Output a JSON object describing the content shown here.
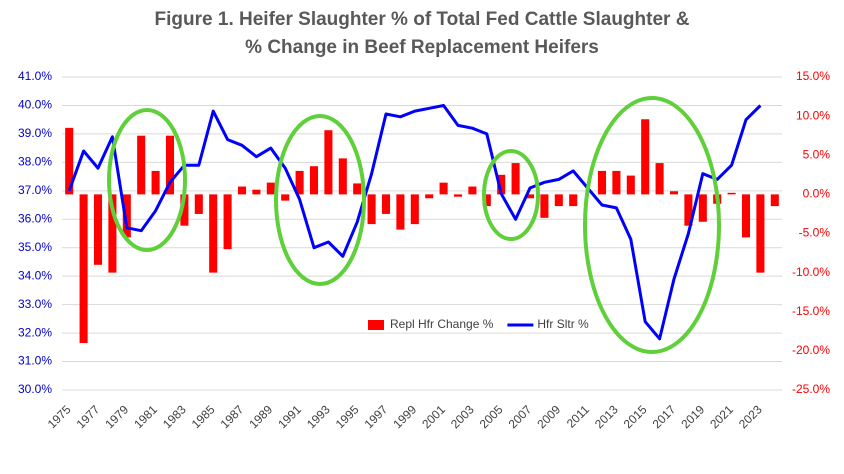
{
  "chart_data": {
    "type": "combo",
    "title": [
      "Figure 1.  Heifer Slaughter % of Total Fed Cattle Slaughter &",
      "% Change in Beef Replacement Heifers"
    ],
    "categories": [
      "1975",
      null,
      "1977",
      null,
      "1979",
      null,
      "1981",
      null,
      "1983",
      null,
      "1985",
      null,
      "1987",
      null,
      "1989",
      null,
      "1991",
      null,
      "1993",
      null,
      "1995",
      null,
      "1997",
      null,
      "1999",
      null,
      "2001",
      null,
      "2003",
      null,
      "2005",
      null,
      "2007",
      null,
      "2009",
      null,
      "2011",
      null,
      "2013",
      null,
      "2015",
      null,
      "2017",
      null,
      "2019",
      null,
      "2021",
      null,
      "2023",
      null
    ],
    "series": [
      {
        "name": "Repl Hfr Change %",
        "type": "bar",
        "axis": "y2",
        "color": "#ff0000",
        "values": [
          8.5,
          -19,
          -9,
          -10,
          -5.5,
          7.5,
          3.0,
          7.5,
          -4,
          -2.5,
          -10,
          -7,
          1.0,
          0.6,
          1.5,
          -0.8,
          3.0,
          3.6,
          8.2,
          4.6,
          1.4,
          -3.8,
          -2.5,
          -4.5,
          -3.8,
          -0.5,
          1.5,
          -0.3,
          1.0,
          -1.5,
          2.5,
          4.0,
          -0.5,
          -3.0,
          -1.5,
          -1.5,
          0,
          3.0,
          3.0,
          2.4,
          9.6,
          4.0,
          0.4,
          -4.0,
          -3.5,
          -1.2,
          0.2,
          -5.5,
          -10,
          -1.5
        ]
      },
      {
        "name": "Hfr Sltr %",
        "type": "line",
        "color": "#0000ff",
        "values": [
          37.0,
          38.4,
          37.8,
          38.9,
          35.7,
          35.6,
          36.3,
          37.3,
          37.9,
          37.9,
          39.8,
          38.8,
          38.6,
          38.2,
          38.5,
          37.8,
          36.7,
          35.0,
          35.2,
          34.7,
          35.9,
          37.6,
          39.7,
          39.6,
          39.8,
          39.9,
          40.0,
          39.3,
          39.2,
          39.0,
          36.9,
          36.0,
          37.1,
          37.3,
          37.4,
          37.7,
          37.1,
          36.5,
          36.4,
          35.3,
          32.4,
          31.8,
          33.9,
          35.5,
          37.6,
          37.4,
          37.9,
          39.5,
          40.0,
          null
        ]
      }
    ],
    "ylim": [
      30,
      41
    ],
    "yticks": [
      {
        "value": 30,
        "label": "30.0%"
      },
      {
        "value": 31,
        "label": "31.0%"
      },
      {
        "value": 32,
        "label": "32.0%"
      },
      {
        "value": 33,
        "label": "33.0%"
      },
      {
        "value": 34,
        "label": "34.0%"
      },
      {
        "value": 35,
        "label": "35.0%"
      },
      {
        "value": 36,
        "label": "36.0%"
      },
      {
        "value": 37,
        "label": "37.0%"
      },
      {
        "value": 38,
        "label": "38.0%"
      },
      {
        "value": 39,
        "label": "39.0%"
      },
      {
        "value": 40,
        "label": "40.0%"
      },
      {
        "value": 41,
        "label": "41.0%"
      }
    ],
    "y2lim": [
      -25,
      15
    ],
    "y2ticks": [
      {
        "value": -25,
        "label": "-25.0%"
      },
      {
        "value": -20,
        "label": "-20.0%"
      },
      {
        "value": -15,
        "label": "-15.0%"
      },
      {
        "value": -10,
        "label": "-10.0%"
      },
      {
        "value": -5,
        "label": "-5.0%"
      },
      {
        "value": 0,
        "label": "0.0%"
      },
      {
        "value": 5,
        "label": "5.0%"
      },
      {
        "value": 10,
        "label": "10.0%"
      },
      {
        "value": 15,
        "label": "15.0%"
      }
    ],
    "grid": true,
    "legend": "bottom"
  }
}
